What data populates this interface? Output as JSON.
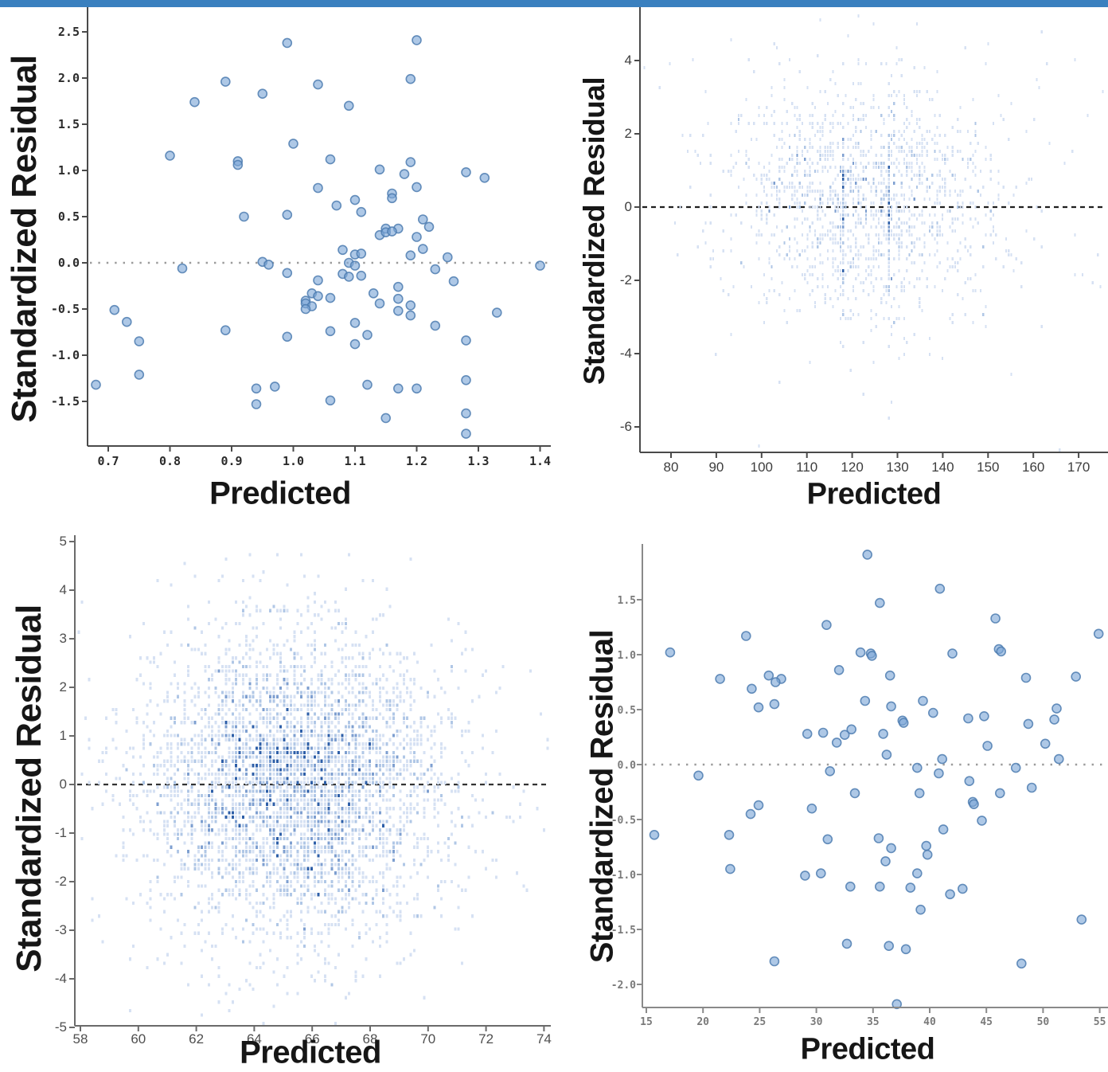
{
  "page": {
    "top_bar_color": "#3a80bf",
    "background": "#ffffff"
  },
  "chart_data": [
    {
      "id": "top-left",
      "type": "scatter",
      "position": "top-left",
      "title": "",
      "xlabel": "Predicted",
      "ylabel": "Standardized Residual",
      "xlim": [
        0.665,
        1.425
      ],
      "ylim": [
        -1.98,
        2.62
      ],
      "grid": false,
      "legend": null,
      "zero_line": "dotted",
      "marker": {
        "shape": "circle",
        "radius": 5.5,
        "fill": "#7ca6d6",
        "stroke": "#4e7cb0"
      },
      "x_ticks": {
        "values": [
          0.7,
          0.8,
          0.9,
          1.0,
          1.1,
          1.2,
          1.3,
          1.4
        ],
        "labels": [
          "0.7",
          "0.8",
          "0.9",
          "1.0",
          "1.1",
          "1.2",
          "1.3",
          "1.4"
        ]
      },
      "y_ticks": {
        "values": [
          2.5,
          2.0,
          1.5,
          1.0,
          0.5,
          0.0,
          -0.5,
          -1.0,
          -1.5
        ],
        "labels": [
          "2.5",
          "2.0",
          "1.5",
          "1.0",
          "0.5",
          "0.0",
          "-0.5",
          "-1.0",
          "-1.5"
        ]
      },
      "points": [
        [
          0.99,
          2.38
        ],
        [
          1.2,
          2.41
        ],
        [
          0.89,
          1.96
        ],
        [
          1.19,
          1.99
        ],
        [
          1.04,
          1.93
        ],
        [
          0.95,
          1.83
        ],
        [
          0.84,
          1.74
        ],
        [
          1.09,
          1.7
        ],
        [
          1.0,
          1.29
        ],
        [
          0.8,
          1.16
        ],
        [
          1.06,
          1.12
        ],
        [
          0.91,
          1.1
        ],
        [
          0.91,
          1.06
        ],
        [
          1.19,
          1.09
        ],
        [
          1.14,
          1.01
        ],
        [
          1.18,
          0.96
        ],
        [
          1.28,
          0.98
        ],
        [
          1.31,
          0.92
        ],
        [
          1.04,
          0.81
        ],
        [
          1.2,
          0.82
        ],
        [
          1.16,
          0.75
        ],
        [
          1.16,
          0.7
        ],
        [
          1.1,
          0.68
        ],
        [
          1.07,
          0.62
        ],
        [
          1.11,
          0.55
        ],
        [
          0.99,
          0.52
        ],
        [
          0.92,
          0.5
        ],
        [
          1.21,
          0.47
        ],
        [
          1.22,
          0.39
        ],
        [
          1.15,
          0.37
        ],
        [
          1.17,
          0.37
        ],
        [
          1.14,
          0.3
        ],
        [
          1.15,
          0.33
        ],
        [
          1.16,
          0.34
        ],
        [
          1.2,
          0.28
        ],
        [
          1.08,
          0.14
        ],
        [
          1.21,
          0.15
        ],
        [
          1.1,
          0.09
        ],
        [
          1.11,
          0.1
        ],
        [
          1.19,
          0.08
        ],
        [
          1.25,
          0.06
        ],
        [
          0.95,
          0.01
        ],
        [
          0.96,
          -0.02
        ],
        [
          1.09,
          0.0
        ],
        [
          1.1,
          -0.03
        ],
        [
          0.82,
          -0.06
        ],
        [
          1.23,
          -0.07
        ],
        [
          1.4,
          -0.03
        ],
        [
          0.99,
          -0.11
        ],
        [
          1.08,
          -0.12
        ],
        [
          1.09,
          -0.15
        ],
        [
          1.11,
          -0.14
        ],
        [
          1.26,
          -0.2
        ],
        [
          1.04,
          -0.19
        ],
        [
          1.17,
          -0.26
        ],
        [
          1.03,
          -0.33
        ],
        [
          1.04,
          -0.36
        ],
        [
          1.13,
          -0.33
        ],
        [
          1.06,
          -0.38
        ],
        [
          1.02,
          -0.41
        ],
        [
          1.02,
          -0.44
        ],
        [
          1.03,
          -0.47
        ],
        [
          1.02,
          -0.5
        ],
        [
          1.17,
          -0.39
        ],
        [
          1.14,
          -0.44
        ],
        [
          1.19,
          -0.46
        ],
        [
          1.17,
          -0.52
        ],
        [
          1.19,
          -0.57
        ],
        [
          0.71,
          -0.51
        ],
        [
          0.73,
          -0.64
        ],
        [
          1.33,
          -0.54
        ],
        [
          1.1,
          -0.65
        ],
        [
          1.23,
          -0.68
        ],
        [
          0.89,
          -0.73
        ],
        [
          1.06,
          -0.74
        ],
        [
          1.12,
          -0.78
        ],
        [
          0.99,
          -0.8
        ],
        [
          1.1,
          -0.88
        ],
        [
          0.75,
          -0.85
        ],
        [
          1.28,
          -0.84
        ],
        [
          0.75,
          -1.21
        ],
        [
          1.28,
          -1.27
        ],
        [
          0.68,
          -1.32
        ],
        [
          0.94,
          -1.36
        ],
        [
          0.97,
          -1.34
        ],
        [
          1.12,
          -1.32
        ],
        [
          1.17,
          -1.36
        ],
        [
          1.2,
          -1.36
        ],
        [
          1.06,
          -1.49
        ],
        [
          0.94,
          -1.53
        ],
        [
          1.15,
          -1.68
        ],
        [
          1.28,
          -1.63
        ],
        [
          1.28,
          -1.85
        ]
      ]
    },
    {
      "id": "top-right",
      "type": "binned_scatter",
      "position": "top-right",
      "title": "",
      "xlabel": "Predicted",
      "ylabel": "Standardized Residual",
      "xlim": [
        72,
        176
      ],
      "ylim": [
        -7.3,
        5.4
      ],
      "grid": false,
      "legend": null,
      "zero_line": "dashed",
      "bin_colors": [
        "#d6e1f3",
        "#b0c7e6",
        "#7e9fd0",
        "#2e5fa8"
      ],
      "x_ticks": {
        "values": [
          80,
          90,
          100,
          110,
          120,
          130,
          140,
          150,
          160,
          170
        ],
        "labels": [
          "80",
          "90",
          "100",
          "110",
          "120",
          "130",
          "140",
          "150",
          "160",
          "170"
        ]
      },
      "y_ticks": {
        "values": [
          4,
          2,
          0,
          -2,
          -4,
          -6
        ],
        "labels": [
          "4",
          "2",
          "0",
          "-2",
          "-4",
          "-6"
        ]
      },
      "distribution": {
        "n": 1500,
        "seed": 1337,
        "mean": [
          123,
          0.15
        ],
        "sd": [
          16,
          1.6
        ],
        "hot_columns": [
          118,
          128
        ],
        "hot_extra": 60,
        "hot_sd": 1.5
      },
      "outliers": [
        [
          74,
          3.8
        ],
        [
          80,
          3.9
        ],
        [
          85,
          4.0
        ],
        [
          166,
          -6.8
        ],
        [
          173,
          -2.1
        ],
        [
          175,
          -2.2
        ],
        [
          172,
          2.5
        ],
        [
          169,
          4.0
        ],
        [
          163,
          3.9
        ],
        [
          113,
          5.1
        ],
        [
          125,
          5.0
        ],
        [
          93,
          4.6
        ],
        [
          103,
          4.5
        ],
        [
          150,
          4.5
        ]
      ]
    },
    {
      "id": "bottom-left",
      "type": "binned_scatter",
      "position": "bottom-left",
      "title": "",
      "xlabel": "Predicted",
      "ylabel": "Standardized Residual",
      "xlim": [
        57.8,
        74.6
      ],
      "ylim": [
        -5.0,
        5.0
      ],
      "grid": false,
      "legend": null,
      "zero_line": "dashed",
      "bin_colors": [
        "#d6e1f3",
        "#b0c7e6",
        "#7e9fd0",
        "#2e5fa8"
      ],
      "x_ticks": {
        "values": [
          58,
          60,
          62,
          64,
          66,
          68,
          70,
          72,
          74
        ],
        "labels": [
          "58",
          "60",
          "62",
          "64",
          "66",
          "68",
          "70",
          "72",
          "74"
        ]
      },
      "y_ticks": {
        "values": [
          5,
          4,
          3,
          2,
          1,
          0,
          -1,
          -2,
          -3,
          -4,
          -5
        ],
        "labels": [
          "5",
          "4",
          "3",
          "2",
          "1",
          "0",
          "-1",
          "-2",
          "-3",
          "-4",
          "-5"
        ]
      },
      "distribution": {
        "n": 4300,
        "seed": 9042,
        "mean": [
          65.4,
          0.0
        ],
        "sd": [
          2.6,
          1.55
        ],
        "hot_columns": [],
        "hot_extra": 0,
        "hot_sd": 1
      },
      "outliers": [
        [
          58,
          3.15
        ],
        [
          61.6,
          4.55
        ],
        [
          67.3,
          4.75
        ],
        [
          66.1,
          3.95
        ],
        [
          74.4,
          0.9
        ],
        [
          74.6,
          0.7
        ],
        [
          73.3,
          -2.05
        ],
        [
          66.8,
          -4.9
        ],
        [
          64.7,
          -4.6
        ],
        [
          69.9,
          -4.35
        ],
        [
          63.0,
          -4.3
        ],
        [
          61.0,
          -3.5
        ],
        [
          62.6,
          -3.6
        ],
        [
          64.3,
          -4.95
        ]
      ]
    },
    {
      "id": "bottom-right",
      "type": "scatter",
      "position": "bottom-right",
      "title": "",
      "xlabel": "Predicted",
      "ylabel": "Standardized Residual",
      "xlim": [
        14.5,
        55.5
      ],
      "ylim": [
        -2.3,
        2.0
      ],
      "grid": false,
      "legend": null,
      "zero_line": "dotted",
      "marker": {
        "shape": "circle",
        "radius": 5.5,
        "fill": "#7ca6d6",
        "stroke": "#4e7cb0"
      },
      "x_ticks": {
        "values": [
          15,
          20,
          25,
          30,
          35,
          40,
          45,
          50,
          55
        ],
        "labels": [
          "15",
          "20",
          "25",
          "30",
          "35",
          "40",
          "45",
          "50",
          "55"
        ]
      },
      "y_ticks": {
        "values": [
          1.5,
          1.0,
          0.5,
          0.0,
          -0.5,
          -1.0,
          -1.5,
          -2.0
        ],
        "labels": [
          "1.5",
          "1.0",
          "0.5",
          "0.0",
          "-0.5",
          "-1.0",
          "-1.5",
          "-2.0"
        ]
      },
      "points": [
        [
          34.5,
          1.91
        ],
        [
          40.9,
          1.6
        ],
        [
          35.6,
          1.47
        ],
        [
          45.8,
          1.33
        ],
        [
          30.9,
          1.27
        ],
        [
          23.8,
          1.17
        ],
        [
          54.9,
          1.19
        ],
        [
          17.1,
          1.02
        ],
        [
          33.9,
          1.02
        ],
        [
          34.8,
          1.01
        ],
        [
          34.9,
          0.99
        ],
        [
          42.0,
          1.01
        ],
        [
          46.1,
          1.05
        ],
        [
          46.3,
          1.03
        ],
        [
          32.0,
          0.86
        ],
        [
          25.8,
          0.81
        ],
        [
          36.5,
          0.81
        ],
        [
          21.5,
          0.78
        ],
        [
          26.9,
          0.78
        ],
        [
          26.4,
          0.75
        ],
        [
          48.5,
          0.79
        ],
        [
          52.9,
          0.8
        ],
        [
          24.3,
          0.69
        ],
        [
          34.3,
          0.58
        ],
        [
          39.4,
          0.58
        ],
        [
          36.6,
          0.53
        ],
        [
          26.3,
          0.55
        ],
        [
          24.9,
          0.52
        ],
        [
          40.3,
          0.47
        ],
        [
          43.4,
          0.42
        ],
        [
          44.8,
          0.44
        ],
        [
          37.6,
          0.4
        ],
        [
          37.7,
          0.38
        ],
        [
          51.2,
          0.51
        ],
        [
          48.7,
          0.37
        ],
        [
          51.0,
          0.41
        ],
        [
          33.1,
          0.32
        ],
        [
          29.2,
          0.28
        ],
        [
          30.6,
          0.29
        ],
        [
          32.5,
          0.27
        ],
        [
          35.9,
          0.28
        ],
        [
          31.8,
          0.2
        ],
        [
          50.2,
          0.19
        ],
        [
          45.1,
          0.17
        ],
        [
          36.2,
          0.09
        ],
        [
          41.1,
          0.05
        ],
        [
          51.4,
          0.05
        ],
        [
          38.9,
          -0.03
        ],
        [
          47.6,
          -0.03
        ],
        [
          31.2,
          -0.06
        ],
        [
          40.8,
          -0.08
        ],
        [
          19.6,
          -0.1
        ],
        [
          43.5,
          -0.15
        ],
        [
          49.0,
          -0.21
        ],
        [
          33.4,
          -0.26
        ],
        [
          39.1,
          -0.26
        ],
        [
          46.2,
          -0.26
        ],
        [
          43.8,
          -0.34
        ],
        [
          43.9,
          -0.36
        ],
        [
          24.9,
          -0.37
        ],
        [
          29.6,
          -0.4
        ],
        [
          24.2,
          -0.45
        ],
        [
          44.6,
          -0.51
        ],
        [
          41.2,
          -0.59
        ],
        [
          15.7,
          -0.64
        ],
        [
          22.3,
          -0.64
        ],
        [
          31.0,
          -0.68
        ],
        [
          35.5,
          -0.67
        ],
        [
          36.6,
          -0.76
        ],
        [
          39.7,
          -0.74
        ],
        [
          39.8,
          -0.82
        ],
        [
          36.1,
          -0.88
        ],
        [
          22.4,
          -0.95
        ],
        [
          29.0,
          -1.01
        ],
        [
          30.4,
          -0.99
        ],
        [
          38.9,
          -0.99
        ],
        [
          33.0,
          -1.11
        ],
        [
          35.6,
          -1.11
        ],
        [
          38.3,
          -1.12
        ],
        [
          41.8,
          -1.18
        ],
        [
          42.9,
          -1.13
        ],
        [
          39.2,
          -1.32
        ],
        [
          53.4,
          -1.41
        ],
        [
          32.7,
          -1.63
        ],
        [
          36.4,
          -1.65
        ],
        [
          37.9,
          -1.68
        ],
        [
          26.3,
          -1.79
        ],
        [
          48.1,
          -1.81
        ],
        [
          37.1,
          -2.18
        ]
      ]
    }
  ]
}
